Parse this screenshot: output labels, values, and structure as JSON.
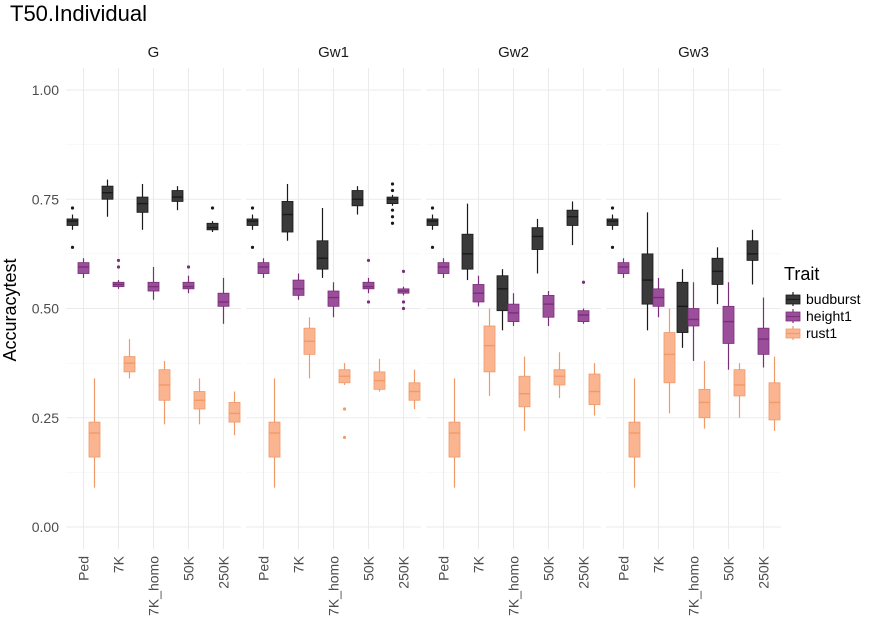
{
  "chart_data": {
    "type": "boxplot",
    "title": "T50.Individual",
    "xlabel": "",
    "ylabel": "Accuracytest",
    "ylim": [
      0,
      1
    ],
    "y_ticks": [
      "0.00",
      "0.25",
      "0.50",
      "0.75",
      "1.00"
    ],
    "y_tick_values": [
      0,
      0.25,
      0.5,
      0.75,
      1.0
    ],
    "categories": [
      "Ped",
      "7K",
      "7K_homo",
      "50K",
      "250K"
    ],
    "legend": {
      "title": "Trait",
      "position": "right",
      "entries": [
        {
          "name": "budburst",
          "fill": "#3a3a3a",
          "line": "#1a1a1a"
        },
        {
          "name": "height1",
          "fill": "#9b4f9b",
          "line": "#7a2f7a"
        },
        {
          "name": "rust1",
          "fill": "#fbb490",
          "line": "#f09a6a"
        }
      ]
    },
    "panels": [
      {
        "name": "G",
        "boxes": {
          "budburst": [
            {
              "cat": "Ped",
              "min": 0.68,
              "q1": 0.69,
              "median": 0.7,
              "q3": 0.705,
              "max": 0.715,
              "outliers": [
                0.73,
                0.64
              ]
            },
            {
              "cat": "7K",
              "min": 0.71,
              "q1": 0.75,
              "median": 0.765,
              "q3": 0.78,
              "max": 0.795,
              "outliers": []
            },
            {
              "cat": "7K_homo",
              "min": 0.68,
              "q1": 0.72,
              "median": 0.74,
              "q3": 0.755,
              "max": 0.785,
              "outliers": []
            },
            {
              "cat": "50K",
              "min": 0.725,
              "q1": 0.745,
              "median": 0.755,
              "q3": 0.77,
              "max": 0.78,
              "outliers": []
            },
            {
              "cat": "250K",
              "min": 0.675,
              "q1": 0.68,
              "median": 0.685,
              "q3": 0.695,
              "max": 0.7,
              "outliers": [
                0.73
              ]
            }
          ],
          "height1": [
            {
              "cat": "Ped",
              "min": 0.57,
              "q1": 0.58,
              "median": 0.595,
              "q3": 0.605,
              "max": 0.615,
              "outliers": []
            },
            {
              "cat": "7K",
              "min": 0.545,
              "q1": 0.55,
              "median": 0.555,
              "q3": 0.56,
              "max": 0.565,
              "outliers": [
                0.61,
                0.595
              ]
            },
            {
              "cat": "7K_homo",
              "min": 0.52,
              "q1": 0.54,
              "median": 0.55,
              "q3": 0.56,
              "max": 0.595,
              "outliers": []
            },
            {
              "cat": "50K",
              "min": 0.535,
              "q1": 0.545,
              "median": 0.55,
              "q3": 0.56,
              "max": 0.575,
              "outliers": [
                0.595
              ]
            },
            {
              "cat": "250K",
              "min": 0.465,
              "q1": 0.505,
              "median": 0.515,
              "q3": 0.535,
              "max": 0.57,
              "outliers": []
            }
          ],
          "rust1": [
            {
              "cat": "Ped",
              "min": 0.09,
              "q1": 0.16,
              "median": 0.215,
              "q3": 0.24,
              "max": 0.34,
              "outliers": []
            },
            {
              "cat": "7K",
              "min": 0.34,
              "q1": 0.355,
              "median": 0.375,
              "q3": 0.39,
              "max": 0.43,
              "outliers": []
            },
            {
              "cat": "7K_homo",
              "min": 0.235,
              "q1": 0.29,
              "median": 0.325,
              "q3": 0.36,
              "max": 0.38,
              "outliers": []
            },
            {
              "cat": "50K",
              "min": 0.235,
              "q1": 0.27,
              "median": 0.29,
              "q3": 0.31,
              "max": 0.34,
              "outliers": []
            },
            {
              "cat": "250K",
              "min": 0.21,
              "q1": 0.24,
              "median": 0.26,
              "q3": 0.285,
              "max": 0.31,
              "outliers": []
            }
          ]
        }
      },
      {
        "name": "Gw1",
        "boxes": {
          "budburst": [
            {
              "cat": "Ped",
              "min": 0.68,
              "q1": 0.69,
              "median": 0.7,
              "q3": 0.705,
              "max": 0.715,
              "outliers": [
                0.73,
                0.64
              ]
            },
            {
              "cat": "7K",
              "min": 0.655,
              "q1": 0.675,
              "median": 0.715,
              "q3": 0.745,
              "max": 0.785,
              "outliers": []
            },
            {
              "cat": "7K_homo",
              "min": 0.57,
              "q1": 0.59,
              "median": 0.615,
              "q3": 0.655,
              "max": 0.73,
              "outliers": []
            },
            {
              "cat": "50K",
              "min": 0.715,
              "q1": 0.735,
              "median": 0.75,
              "q3": 0.77,
              "max": 0.78,
              "outliers": []
            },
            {
              "cat": "250K",
              "min": 0.735,
              "q1": 0.74,
              "median": 0.75,
              "q3": 0.755,
              "max": 0.76,
              "outliers": [
                0.785,
                0.77,
                0.725,
                0.71,
                0.695
              ]
            }
          ],
          "height1": [
            {
              "cat": "Ped",
              "min": 0.57,
              "q1": 0.58,
              "median": 0.595,
              "q3": 0.605,
              "max": 0.615,
              "outliers": []
            },
            {
              "cat": "7K",
              "min": 0.52,
              "q1": 0.53,
              "median": 0.545,
              "q3": 0.565,
              "max": 0.58,
              "outliers": []
            },
            {
              "cat": "7K_homo",
              "min": 0.48,
              "q1": 0.505,
              "median": 0.525,
              "q3": 0.54,
              "max": 0.56,
              "outliers": []
            },
            {
              "cat": "50K",
              "min": 0.535,
              "q1": 0.545,
              "median": 0.55,
              "q3": 0.56,
              "max": 0.57,
              "outliers": [
                0.61,
                0.515
              ]
            },
            {
              "cat": "250K",
              "min": 0.53,
              "q1": 0.535,
              "median": 0.54,
              "q3": 0.545,
              "max": 0.55,
              "outliers": [
                0.585,
                0.515,
                0.5
              ]
            }
          ],
          "rust1": [
            {
              "cat": "Ped",
              "min": 0.09,
              "q1": 0.16,
              "median": 0.215,
              "q3": 0.24,
              "max": 0.34,
              "outliers": []
            },
            {
              "cat": "7K",
              "min": 0.34,
              "q1": 0.395,
              "median": 0.425,
              "q3": 0.455,
              "max": 0.48,
              "outliers": []
            },
            {
              "cat": "7K_homo",
              "min": 0.325,
              "q1": 0.33,
              "median": 0.345,
              "q3": 0.36,
              "max": 0.375,
              "outliers": [
                0.27,
                0.205
              ]
            },
            {
              "cat": "50K",
              "min": 0.31,
              "q1": 0.315,
              "median": 0.335,
              "q3": 0.355,
              "max": 0.385,
              "outliers": []
            },
            {
              "cat": "250K",
              "min": 0.27,
              "q1": 0.29,
              "median": 0.31,
              "q3": 0.33,
              "max": 0.36,
              "outliers": []
            }
          ]
        }
      },
      {
        "name": "Gw2",
        "boxes": {
          "budburst": [
            {
              "cat": "Ped",
              "min": 0.68,
              "q1": 0.69,
              "median": 0.7,
              "q3": 0.705,
              "max": 0.715,
              "outliers": [
                0.73,
                0.64
              ]
            },
            {
              "cat": "7K",
              "min": 0.565,
              "q1": 0.59,
              "median": 0.625,
              "q3": 0.67,
              "max": 0.74,
              "outliers": []
            },
            {
              "cat": "7K_homo",
              "min": 0.45,
              "q1": 0.495,
              "median": 0.545,
              "q3": 0.575,
              "max": 0.59,
              "outliers": []
            },
            {
              "cat": "50K",
              "min": 0.58,
              "q1": 0.635,
              "median": 0.665,
              "q3": 0.685,
              "max": 0.705,
              "outliers": []
            },
            {
              "cat": "250K",
              "min": 0.645,
              "q1": 0.69,
              "median": 0.71,
              "q3": 0.725,
              "max": 0.745,
              "outliers": []
            }
          ],
          "height1": [
            {
              "cat": "Ped",
              "min": 0.57,
              "q1": 0.58,
              "median": 0.595,
              "q3": 0.605,
              "max": 0.615,
              "outliers": []
            },
            {
              "cat": "7K",
              "min": 0.505,
              "q1": 0.515,
              "median": 0.535,
              "q3": 0.555,
              "max": 0.575,
              "outliers": []
            },
            {
              "cat": "7K_homo",
              "min": 0.46,
              "q1": 0.47,
              "median": 0.49,
              "q3": 0.51,
              "max": 0.535,
              "outliers": []
            },
            {
              "cat": "50K",
              "min": 0.46,
              "q1": 0.48,
              "median": 0.51,
              "q3": 0.53,
              "max": 0.54,
              "outliers": []
            },
            {
              "cat": "250K",
              "min": 0.465,
              "q1": 0.47,
              "median": 0.485,
              "q3": 0.495,
              "max": 0.5,
              "outliers": [
                0.56
              ]
            }
          ],
          "rust1": [
            {
              "cat": "Ped",
              "min": 0.09,
              "q1": 0.16,
              "median": 0.215,
              "q3": 0.24,
              "max": 0.34,
              "outliers": []
            },
            {
              "cat": "7K",
              "min": 0.3,
              "q1": 0.355,
              "median": 0.415,
              "q3": 0.46,
              "max": 0.5,
              "outliers": []
            },
            {
              "cat": "7K_homo",
              "min": 0.22,
              "q1": 0.275,
              "median": 0.305,
              "q3": 0.345,
              "max": 0.39,
              "outliers": []
            },
            {
              "cat": "50K",
              "min": 0.295,
              "q1": 0.325,
              "median": 0.345,
              "q3": 0.36,
              "max": 0.4,
              "outliers": []
            },
            {
              "cat": "250K",
              "min": 0.255,
              "q1": 0.28,
              "median": 0.31,
              "q3": 0.35,
              "max": 0.375,
              "outliers": []
            }
          ]
        }
      },
      {
        "name": "Gw3",
        "boxes": {
          "budburst": [
            {
              "cat": "Ped",
              "min": 0.68,
              "q1": 0.69,
              "median": 0.7,
              "q3": 0.705,
              "max": 0.715,
              "outliers": [
                0.73,
                0.64
              ]
            },
            {
              "cat": "7K",
              "min": 0.45,
              "q1": 0.51,
              "median": 0.565,
              "q3": 0.625,
              "max": 0.72,
              "outliers": []
            },
            {
              "cat": "7K_homo",
              "min": 0.41,
              "q1": 0.445,
              "median": 0.505,
              "q3": 0.56,
              "max": 0.59,
              "outliers": []
            },
            {
              "cat": "50K",
              "min": 0.51,
              "q1": 0.555,
              "median": 0.585,
              "q3": 0.615,
              "max": 0.64,
              "outliers": []
            },
            {
              "cat": "250K",
              "min": 0.555,
              "q1": 0.61,
              "median": 0.625,
              "q3": 0.655,
              "max": 0.68,
              "outliers": []
            }
          ],
          "height1": [
            {
              "cat": "Ped",
              "min": 0.57,
              "q1": 0.58,
              "median": 0.595,
              "q3": 0.605,
              "max": 0.615,
              "outliers": []
            },
            {
              "cat": "7K",
              "min": 0.48,
              "q1": 0.505,
              "median": 0.525,
              "q3": 0.545,
              "max": 0.57,
              "outliers": []
            },
            {
              "cat": "7K_homo",
              "min": 0.38,
              "q1": 0.46,
              "median": 0.475,
              "q3": 0.5,
              "max": 0.56,
              "outliers": []
            },
            {
              "cat": "50K",
              "min": 0.36,
              "q1": 0.42,
              "median": 0.47,
              "q3": 0.505,
              "max": 0.56,
              "outliers": []
            },
            {
              "cat": "250K",
              "min": 0.365,
              "q1": 0.395,
              "median": 0.43,
              "q3": 0.455,
              "max": 0.525,
              "outliers": []
            }
          ],
          "rust1": [
            {
              "cat": "Ped",
              "min": 0.09,
              "q1": 0.16,
              "median": 0.215,
              "q3": 0.24,
              "max": 0.34,
              "outliers": []
            },
            {
              "cat": "7K",
              "min": 0.26,
              "q1": 0.33,
              "median": 0.395,
              "q3": 0.445,
              "max": 0.5,
              "outliers": []
            },
            {
              "cat": "7K_homo",
              "min": 0.225,
              "q1": 0.25,
              "median": 0.285,
              "q3": 0.315,
              "max": 0.38,
              "outliers": []
            },
            {
              "cat": "50K",
              "min": 0.25,
              "q1": 0.3,
              "median": 0.325,
              "q3": 0.36,
              "max": 0.375,
              "outliers": []
            },
            {
              "cat": "250K",
              "min": 0.22,
              "q1": 0.245,
              "median": 0.285,
              "q3": 0.33,
              "max": 0.39,
              "outliers": []
            }
          ]
        }
      }
    ]
  }
}
